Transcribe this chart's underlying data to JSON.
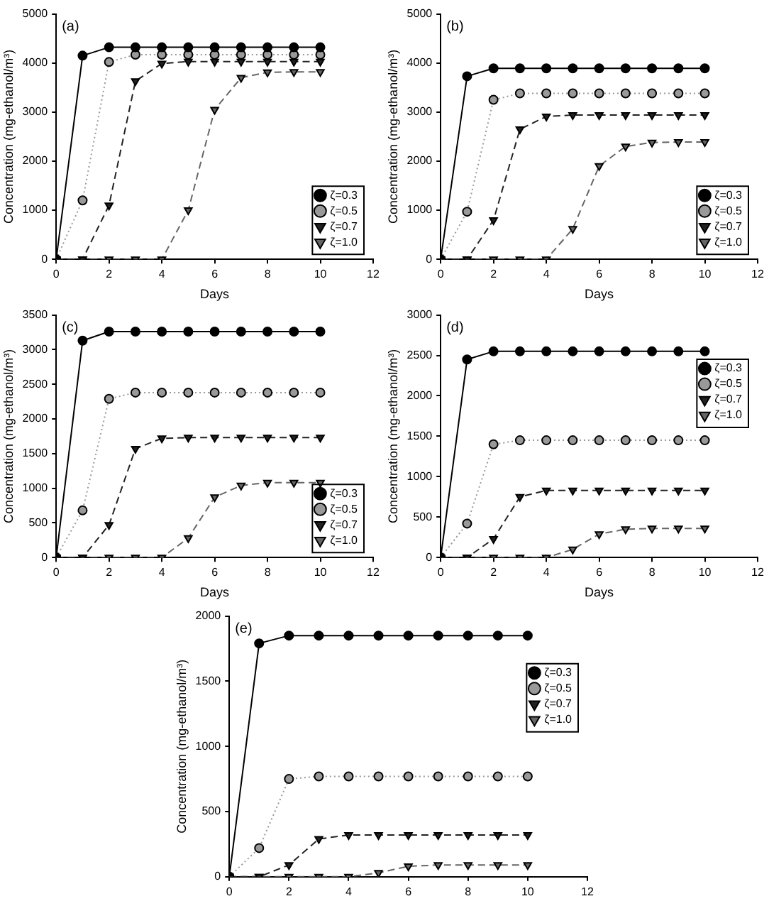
{
  "chart_data": [
    {
      "type": "line",
      "annotations": [
        "(a)"
      ],
      "xlabel": "Days",
      "ylabel": "Concentration (mg-ethanol/m³)",
      "x": [
        0,
        1,
        2,
        3,
        4,
        5,
        6,
        7,
        8,
        9,
        10
      ],
      "xlim": [
        0,
        12
      ],
      "xticks": [
        0,
        2,
        4,
        6,
        8,
        10,
        12
      ],
      "ylim": [
        0,
        5000
      ],
      "yticks": [
        0,
        1000,
        2000,
        3000,
        4000,
        5000
      ],
      "grid": false,
      "legend": "bottom right",
      "series": [
        {
          "name": "ζ=0.3",
          "color": "#000000",
          "marker": "circle",
          "line_style": "solid",
          "values": [
            0,
            4150,
            4320,
            4320,
            4320,
            4320,
            4320,
            4320,
            4320,
            4320,
            4320
          ]
        },
        {
          "name": "ζ=0.5",
          "color": "#999999",
          "marker": "circle",
          "line_style": "dotted",
          "values": [
            0,
            1200,
            4020,
            4170,
            4170,
            4170,
            4170,
            4170,
            4170,
            4170,
            4170
          ]
        },
        {
          "name": "ζ=0.7",
          "color": "#222222",
          "marker": "triangle",
          "line_style": "dashed",
          "values": [
            0,
            0,
            1100,
            3630,
            3990,
            4030,
            4030,
            4030,
            4030,
            4030,
            4030
          ]
        },
        {
          "name": "ζ=1.0",
          "color": "#666666",
          "marker": "triangle",
          "line_style": "dashed",
          "values": [
            0,
            0,
            0,
            0,
            0,
            1000,
            3050,
            3700,
            3810,
            3820,
            3820
          ]
        }
      ]
    },
    {
      "type": "line",
      "annotations": [
        "(b)"
      ],
      "xlabel": "Days",
      "ylabel": "Concentration (mg-ethanol/m³)",
      "x": [
        0,
        1,
        2,
        3,
        4,
        5,
        6,
        7,
        8,
        9,
        10
      ],
      "xlim": [
        0,
        12
      ],
      "xticks": [
        0,
        2,
        4,
        6,
        8,
        10,
        12
      ],
      "ylim": [
        0,
        5000
      ],
      "yticks": [
        0,
        1000,
        2000,
        3000,
        4000,
        5000
      ],
      "grid": false,
      "legend": "bottom right",
      "series": [
        {
          "name": "ζ=0.3",
          "color": "#000000",
          "marker": "circle",
          "line_style": "solid",
          "values": [
            0,
            3730,
            3890,
            3890,
            3890,
            3890,
            3890,
            3890,
            3890,
            3890,
            3890
          ]
        },
        {
          "name": "ζ=0.5",
          "color": "#999999",
          "marker": "circle",
          "line_style": "dotted",
          "values": [
            0,
            970,
            3250,
            3380,
            3380,
            3380,
            3380,
            3380,
            3380,
            3380,
            3380
          ]
        },
        {
          "name": "ζ=0.7",
          "color": "#222222",
          "marker": "triangle",
          "line_style": "dashed",
          "values": [
            0,
            0,
            800,
            2650,
            2910,
            2940,
            2940,
            2940,
            2940,
            2940,
            2940
          ]
        },
        {
          "name": "ζ=1.0",
          "color": "#666666",
          "marker": "triangle",
          "line_style": "dashed",
          "values": [
            0,
            0,
            0,
            0,
            0,
            620,
            1900,
            2300,
            2380,
            2390,
            2390
          ]
        }
      ]
    },
    {
      "type": "line",
      "annotations": [
        "(c)"
      ],
      "xlabel": "Days",
      "ylabel": "Concentration (mg-ethanol/m³)",
      "x": [
        0,
        1,
        2,
        3,
        4,
        5,
        6,
        7,
        8,
        9,
        10
      ],
      "xlim": [
        0,
        12
      ],
      "xticks": [
        0,
        2,
        4,
        6,
        8,
        10,
        12
      ],
      "ylim": [
        0,
        3500
      ],
      "yticks": [
        0,
        500,
        1000,
        1500,
        2000,
        2500,
        3000,
        3500
      ],
      "grid": false,
      "legend": "bottom right",
      "series": [
        {
          "name": "ζ=0.3",
          "color": "#000000",
          "marker": "circle",
          "line_style": "solid",
          "values": [
            0,
            3130,
            3260,
            3260,
            3260,
            3260,
            3260,
            3260,
            3260,
            3260,
            3260
          ]
        },
        {
          "name": "ζ=0.5",
          "color": "#999999",
          "marker": "circle",
          "line_style": "dotted",
          "values": [
            0,
            680,
            2290,
            2380,
            2380,
            2380,
            2380,
            2380,
            2380,
            2380,
            2380
          ]
        },
        {
          "name": "ζ=0.7",
          "color": "#222222",
          "marker": "triangle",
          "line_style": "dashed",
          "values": [
            0,
            0,
            470,
            1570,
            1720,
            1730,
            1730,
            1730,
            1730,
            1730,
            1730
          ]
        },
        {
          "name": "ζ=1.0",
          "color": "#666666",
          "marker": "triangle",
          "line_style": "dashed",
          "values": [
            0,
            0,
            0,
            0,
            0,
            280,
            870,
            1040,
            1080,
            1080,
            1080
          ]
        }
      ]
    },
    {
      "type": "line",
      "annotations": [
        "(d)"
      ],
      "xlabel": "Days",
      "ylabel": "Concentration (mg-ethanol/m³)",
      "x": [
        0,
        1,
        2,
        3,
        4,
        5,
        6,
        7,
        8,
        9,
        10
      ],
      "xlim": [
        0,
        12
      ],
      "xticks": [
        0,
        2,
        4,
        6,
        8,
        10,
        12
      ],
      "ylim": [
        0,
        3000
      ],
      "yticks": [
        0,
        500,
        1000,
        1500,
        2000,
        2500,
        3000
      ],
      "grid": false,
      "legend": "top right",
      "series": [
        {
          "name": "ζ=0.3",
          "color": "#000000",
          "marker": "circle",
          "line_style": "solid",
          "values": [
            0,
            2450,
            2550,
            2550,
            2550,
            2550,
            2550,
            2550,
            2550,
            2550,
            2550
          ]
        },
        {
          "name": "ζ=0.5",
          "color": "#999999",
          "marker": "circle",
          "line_style": "dotted",
          "values": [
            0,
            420,
            1400,
            1450,
            1450,
            1450,
            1450,
            1450,
            1450,
            1450,
            1450
          ]
        },
        {
          "name": "ζ=0.7",
          "color": "#222222",
          "marker": "triangle",
          "line_style": "dashed",
          "values": [
            0,
            0,
            230,
            750,
            830,
            830,
            830,
            830,
            830,
            830,
            830
          ]
        },
        {
          "name": "ζ=1.0",
          "color": "#666666",
          "marker": "triangle",
          "line_style": "dashed",
          "values": [
            0,
            0,
            0,
            0,
            0,
            100,
            290,
            350,
            360,
            360,
            360
          ]
        }
      ]
    },
    {
      "type": "line",
      "annotations": [
        "(e)"
      ],
      "ylabel": "Concentration (mg-ethanol/m³)",
      "x": [
        0,
        1,
        2,
        3,
        4,
        5,
        6,
        7,
        8,
        9,
        10
      ],
      "xlim": [
        0,
        12
      ],
      "xticks": [
        0,
        2,
        4,
        6,
        8,
        10,
        12
      ],
      "ylim": [
        0,
        2000
      ],
      "yticks": [
        0,
        500,
        1000,
        1500,
        2000
      ],
      "grid": false,
      "legend": "top right",
      "series": [
        {
          "name": "ζ=0.3",
          "color": "#000000",
          "marker": "circle",
          "line_style": "solid",
          "values": [
            0,
            1790,
            1850,
            1850,
            1850,
            1850,
            1850,
            1850,
            1850,
            1850,
            1850
          ]
        },
        {
          "name": "ζ=0.5",
          "color": "#999999",
          "marker": "circle",
          "line_style": "dotted",
          "values": [
            0,
            220,
            750,
            770,
            770,
            770,
            770,
            770,
            770,
            770,
            770
          ]
        },
        {
          "name": "ζ=0.7",
          "color": "#222222",
          "marker": "triangle",
          "line_style": "dashed",
          "values": [
            0,
            0,
            90,
            290,
            320,
            320,
            320,
            320,
            320,
            320,
            320
          ]
        },
        {
          "name": "ζ=1.0",
          "color": "#666666",
          "marker": "triangle",
          "line_style": "dashed",
          "values": [
            0,
            0,
            0,
            0,
            0,
            30,
            80,
            90,
            90,
            90,
            90
          ]
        }
      ]
    }
  ]
}
